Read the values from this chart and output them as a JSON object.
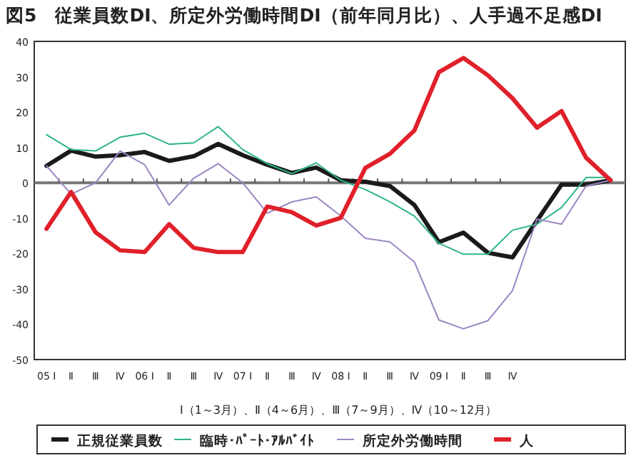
{
  "chart_data": {
    "type": "line",
    "title": "図5　従業員数DI、所定外労働時間DI（前年同月比）、人手過不足感DI",
    "categories": [
      "05 Ⅰ",
      "Ⅱ",
      "Ⅲ",
      "Ⅳ",
      "06 Ⅰ",
      "Ⅱ",
      "Ⅲ",
      "Ⅳ",
      "07 Ⅰ",
      "Ⅱ",
      "Ⅲ",
      "Ⅳ",
      "08 Ⅰ",
      "Ⅱ",
      "Ⅲ",
      "Ⅳ",
      "09 Ⅰ",
      "Ⅱ",
      "Ⅲ",
      "Ⅳ",
      null,
      null,
      null,
      null
    ],
    "series": [
      {
        "name": "正規従業員数",
        "color": "#1a1a1a",
        "values": [
          4.8,
          9.1,
          7.4,
          7.8,
          8.7,
          6.2,
          7.5,
          11,
          7.8,
          5.1,
          2.8,
          4.3,
          0.7,
          0.3,
          -0.9,
          -6.3,
          -16.8,
          -14.1,
          -19.8,
          -21.1,
          -10.7,
          -0.5,
          -0.5,
          0.7
        ]
      },
      {
        "name": "臨時･ﾊﾟｰﾄ･ｱﾙﾊﾞｲﾄ",
        "color": "#2db58a",
        "values": [
          13.6,
          9.4,
          9,
          12.9,
          14,
          10.9,
          11.3,
          15.9,
          9.4,
          5.4,
          2.6,
          5.6,
          0.7,
          -1.9,
          -5.4,
          -9.4,
          -17.1,
          -20.2,
          -20.2,
          -13.4,
          -11.7,
          -7,
          1.5,
          1.5
        ]
      },
      {
        "name": "所定外労働時間",
        "color": "#9b86c2",
        "values": [
          4.8,
          -3.2,
          0,
          9,
          5.1,
          -6.3,
          1.3,
          5.4,
          0,
          -8.6,
          -5.4,
          -4,
          -9.4,
          -15.7,
          -16.7,
          -22.4,
          -38.8,
          -41.3,
          -39,
          -30.5,
          -10.3,
          -11.7,
          -0.9,
          0.7
        ]
      },
      {
        "name": "人",
        "color": "#e0202a",
        "values": [
          -13,
          -2.6,
          -14,
          -19.1,
          -19.6,
          -11.7,
          -18.4,
          -19.6,
          -19.6,
          -6.7,
          -8.3,
          -12.1,
          -9.9,
          4.2,
          8.2,
          14.8,
          31.3,
          35.3,
          30.4,
          23.9,
          15.6,
          20.3,
          7.1,
          0.7
        ]
      }
    ],
    "ylim": [
      -50,
      40
    ],
    "yticks": [
      -50,
      -40,
      -30,
      -20,
      -10,
      0,
      10,
      20,
      30,
      40
    ],
    "annotations": [
      "Ⅰ（1～3月）、Ⅱ（4～6月）、Ⅲ（7～9月）、Ⅳ（10～12月）"
    ],
    "legend": "bottom",
    "marker": "none",
    "line_style": "solid"
  }
}
